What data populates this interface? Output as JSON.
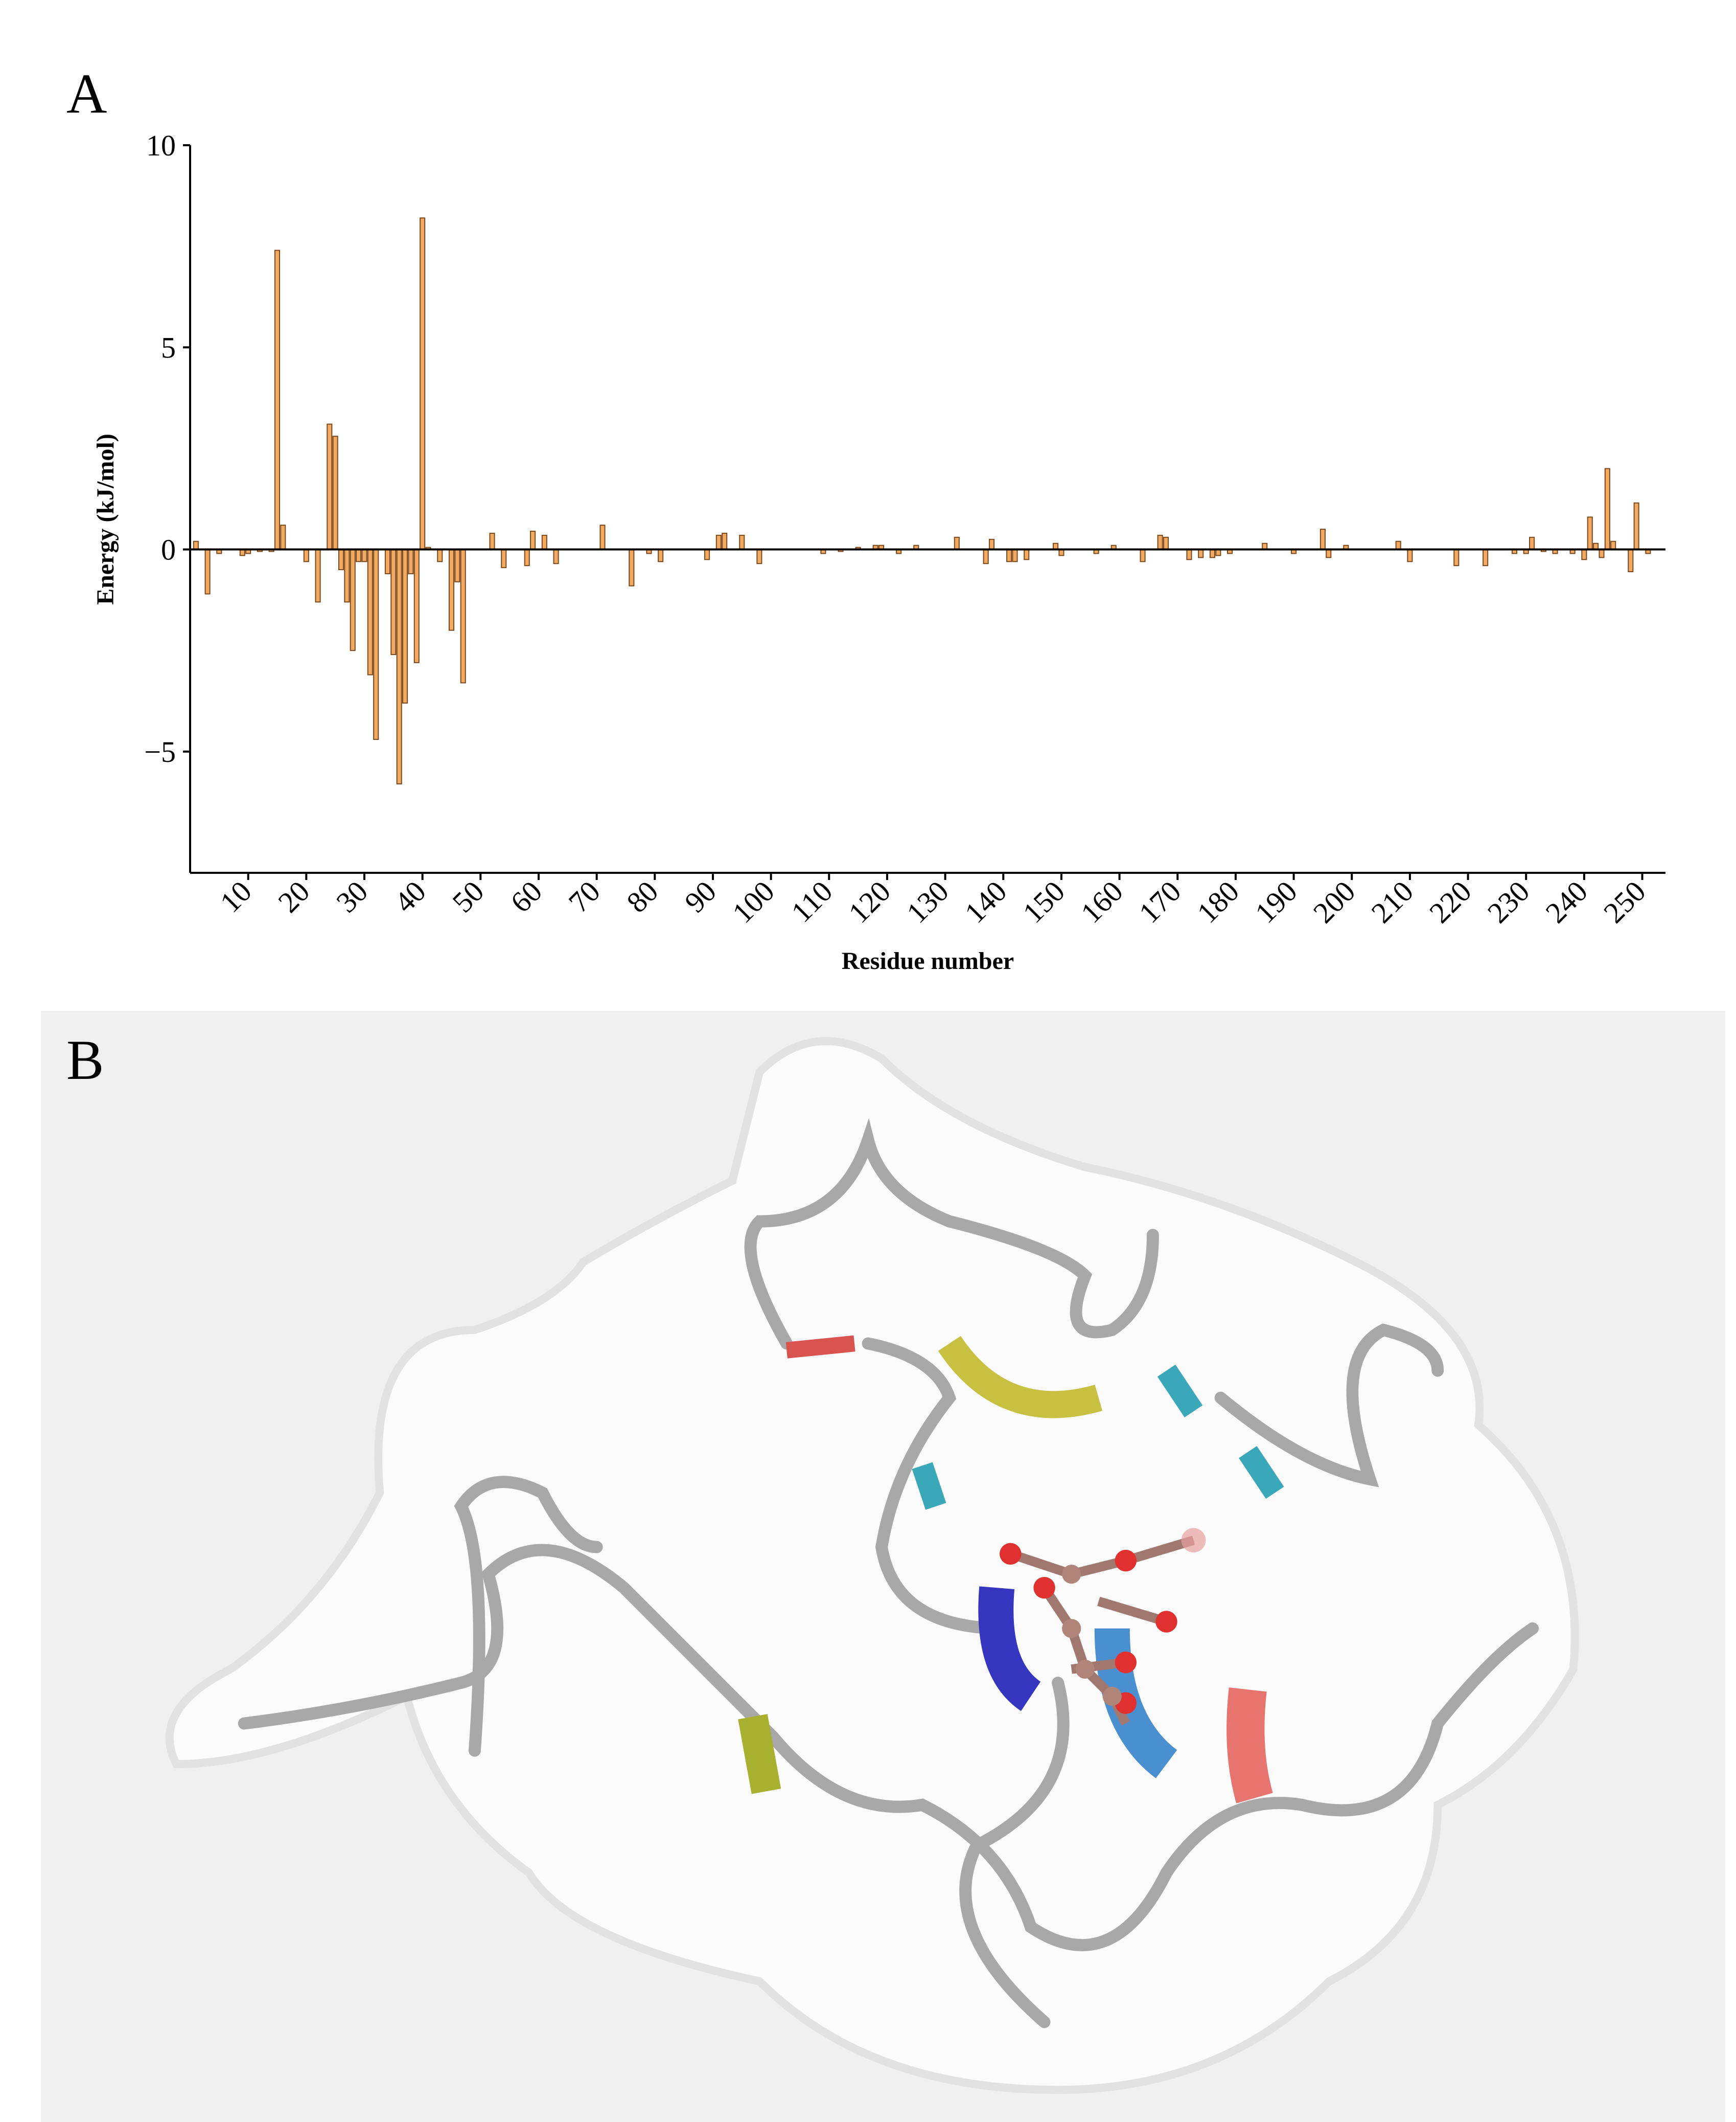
{
  "panel_labels": [
    "A",
    "B"
  ],
  "chart_data": {
    "type": "bar",
    "x_label": "Residue number",
    "y_label": "Energy (kJ/mol)",
    "color": "#f2aa63",
    "edge_color": "#7a4a1e",
    "xlim": [
      0,
      254
    ],
    "ylim": [
      -8,
      10
    ],
    "xticks": [
      10,
      20,
      30,
      40,
      50,
      60,
      70,
      80,
      90,
      100,
      110,
      120,
      130,
      140,
      150,
      160,
      170,
      180,
      190,
      200,
      210,
      220,
      230,
      240,
      250
    ],
    "yticks": [
      {
        "value": -5,
        "label": "−5"
      },
      0,
      5,
      10
    ],
    "x": [
      1,
      3,
      5,
      9,
      10,
      12,
      14,
      15,
      16,
      20,
      22,
      24,
      25,
      26,
      27,
      28,
      29,
      30,
      31,
      32,
      34,
      35,
      36,
      37,
      38,
      39,
      40,
      41,
      43,
      45,
      46,
      47,
      52,
      54,
      58,
      59,
      61,
      63,
      71,
      76,
      79,
      81,
      89,
      91,
      92,
      95,
      98,
      109,
      112,
      115,
      118,
      119,
      122,
      125,
      132,
      137,
      138,
      141,
      142,
      144,
      149,
      150,
      156,
      159,
      164,
      167,
      168,
      172,
      174,
      176,
      177,
      179,
      185,
      190,
      195,
      196,
      199,
      208,
      210,
      218,
      223,
      228,
      230,
      231,
      233,
      235,
      238,
      240,
      241,
      242,
      243,
      244,
      245,
      248,
      249,
      251
    ],
    "values": [
      0.2,
      -1.1,
      -0.1,
      -0.15,
      -0.1,
      -0.05,
      -0.05,
      7.4,
      0.6,
      -0.3,
      -1.3,
      3.1,
      2.8,
      -0.5,
      -1.3,
      -2.5,
      -0.3,
      -0.3,
      -3.1,
      -4.7,
      -0.6,
      -2.6,
      -5.8,
      -3.8,
      -0.6,
      -2.8,
      8.2,
      0.05,
      -0.3,
      -2.0,
      -0.8,
      -3.3,
      0.4,
      -0.45,
      -0.4,
      0.45,
      0.35,
      -0.35,
      0.6,
      -0.9,
      -0.1,
      -0.3,
      -0.25,
      0.35,
      0.4,
      0.35,
      -0.35,
      -0.1,
      -0.05,
      0.05,
      0.1,
      0.1,
      -0.1,
      0.1,
      0.3,
      -0.35,
      0.25,
      -0.3,
      -0.3,
      -0.25,
      0.15,
      -0.15,
      -0.1,
      0.1,
      -0.3,
      0.35,
      0.3,
      -0.25,
      -0.2,
      -0.2,
      -0.15,
      -0.1,
      0.15,
      -0.1,
      0.5,
      -0.2,
      0.1,
      0.2,
      -0.3,
      -0.4,
      -0.4,
      -0.1,
      -0.1,
      0.3,
      -0.05,
      -0.1,
      -0.1,
      -0.25,
      0.8,
      0.15,
      -0.2,
      2.0,
      0.2,
      -0.55,
      1.15,
      -0.1
    ]
  }
}
